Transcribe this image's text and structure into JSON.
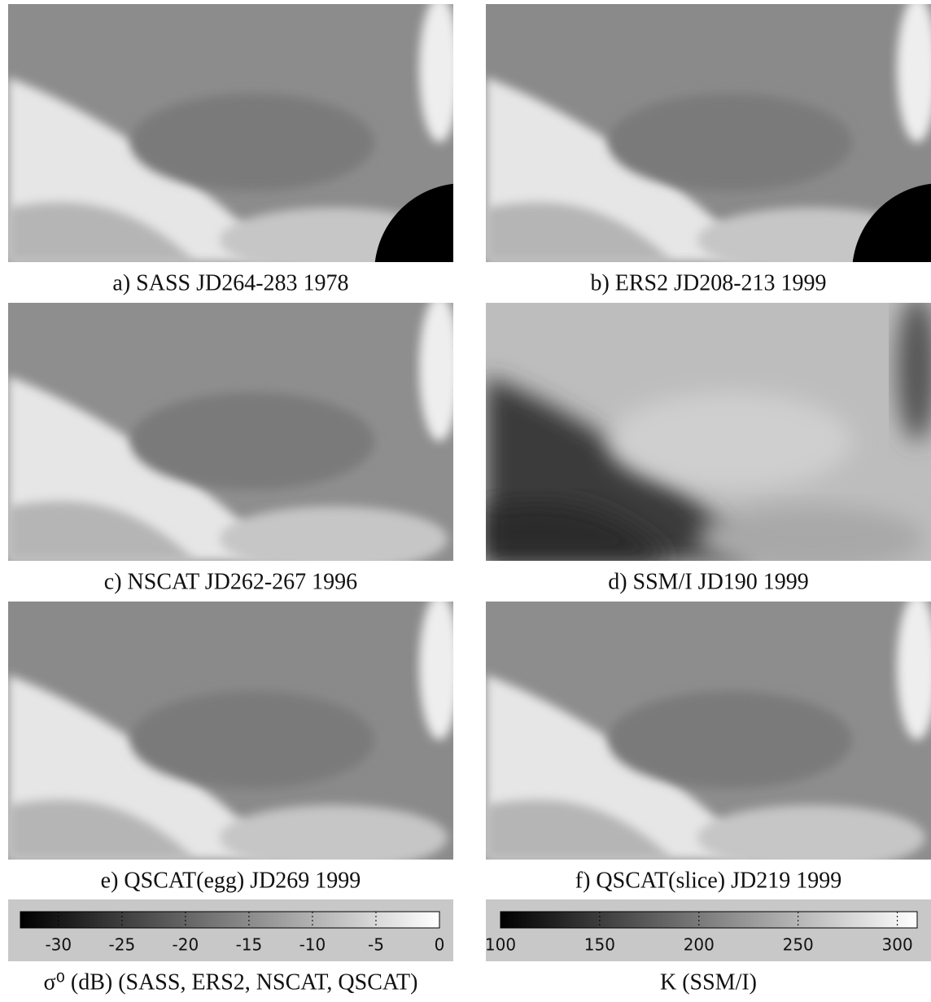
{
  "panels": [
    {
      "caption": "a) SASS JD264-283 1978"
    },
    {
      "caption": "b) ERS2 JD208-213 1999"
    },
    {
      "caption": "c) NSCAT JD262-267 1996"
    },
    {
      "caption": "d) SSM/I JD190 1999"
    },
    {
      "caption": "e) QSCAT(egg) JD269 1999"
    },
    {
      "caption": "f) QSCAT(slice) JD219 1999"
    }
  ],
  "colorbars": [
    {
      "label": "σ⁰ (dB) (SASS, ERS2, NSCAT, QSCAT)",
      "lim": [
        -33,
        0
      ],
      "ticks": [
        -30,
        -25,
        -20,
        -15,
        -10,
        -5,
        0
      ]
    },
    {
      "label": "K (SSM/I)",
      "lim": [
        100,
        310
      ],
      "ticks": [
        100,
        150,
        200,
        250,
        300
      ]
    }
  ]
}
